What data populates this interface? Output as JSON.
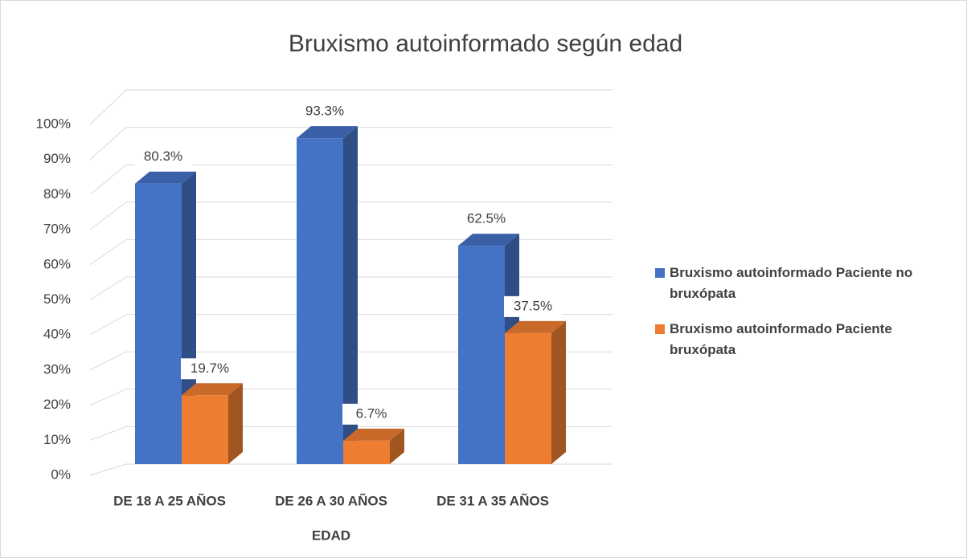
{
  "chart_data": {
    "type": "bar3d",
    "title": "Bruxismo autoinformado según edad",
    "categories": [
      "DE 18 A 25 AÑOS",
      "DE 26 A 30 AÑOS",
      "DE 31 A 35 AÑOS"
    ],
    "x_label": "EDAD",
    "series": [
      {
        "name": "Bruxismo autoinformado Paciente no bruxópata",
        "color": "#4472c4",
        "values": [
          80.3,
          93.3,
          62.5
        ],
        "value_labels": [
          "80.3%",
          "93.3%",
          "62.5%"
        ]
      },
      {
        "name": "Bruxismo autoinformado Paciente bruxópata",
        "color": "#ed7d31",
        "values": [
          19.7,
          6.7,
          37.5
        ],
        "value_labels": [
          "19.7%",
          "6.7%",
          "37.5%"
        ]
      }
    ],
    "ylim": [
      0,
      100
    ],
    "yticks": [
      {
        "value": 0,
        "label": "0%"
      },
      {
        "value": 10,
        "label": "10%"
      },
      {
        "value": 20,
        "label": "20%"
      },
      {
        "value": 30,
        "label": "30%"
      },
      {
        "value": 40,
        "label": "40%"
      },
      {
        "value": 50,
        "label": "50%"
      },
      {
        "value": 60,
        "label": "60%"
      },
      {
        "value": 70,
        "label": "70%"
      },
      {
        "value": 80,
        "label": "80%"
      },
      {
        "value": 90,
        "label": "90%"
      },
      {
        "value": 100,
        "label": "100%"
      }
    ],
    "grid": true,
    "legend": "right"
  }
}
